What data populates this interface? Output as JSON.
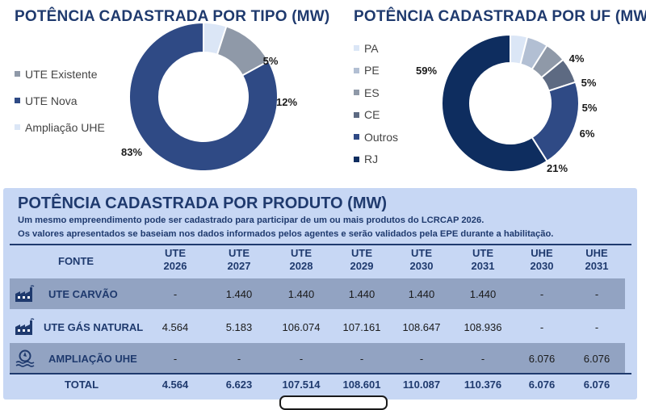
{
  "charts": {
    "by_type": {
      "title": "POTÊNCIA CADASTRADA POR TIPO (MW)"
    },
    "by_uf": {
      "title": "POTÊNCIA CADASTRADA POR UF (MW)"
    }
  },
  "chart_data": [
    {
      "type": "pie",
      "variant": "donut",
      "title": "POTÊNCIA CADASTRADA POR TIPO (MW)",
      "categories": [
        "UTE Existente",
        "UTE Nova",
        "Ampliação UHE"
      ],
      "values": [
        12,
        83,
        5
      ],
      "labels": [
        "12%",
        "83%",
        "5%"
      ],
      "colors": [
        "#8f99a8",
        "#2f4a85",
        "#dbe6f6"
      ],
      "legend": "left"
    },
    {
      "type": "pie",
      "variant": "donut",
      "title": "POTÊNCIA CADASTRADA POR UF (MW)",
      "categories": [
        "PA",
        "PE",
        "ES",
        "CE",
        "Outros",
        "RJ"
      ],
      "values": [
        4,
        5,
        5,
        6,
        21,
        59
      ],
      "labels": [
        "4%",
        "5%",
        "5%",
        "6%",
        "21%",
        "59%"
      ],
      "colors": [
        "#dbe6f6",
        "#b2bfd3",
        "#8f99a8",
        "#5d6a82",
        "#2f4a85",
        "#0e2d5f"
      ],
      "legend": "left"
    },
    {
      "type": "table",
      "title": "POTÊNCIA CADASTRADA POR PRODUTO (MW)",
      "columns": [
        "FONTE",
        "UTE 2026",
        "UTE 2027",
        "UTE 2028",
        "UTE 2029",
        "UTE 2030",
        "UTE 2031",
        "UHE 2030",
        "UHE 2031"
      ],
      "rows": [
        [
          "UTE CARVÃO",
          "-",
          "1.440",
          "1.440",
          "1.440",
          "1.440",
          "1.440",
          "-",
          "-"
        ],
        [
          "UTE GÁS NATURAL",
          "4.564",
          "5.183",
          "106.074",
          "107.161",
          "108.647",
          "108.936",
          "-",
          "-"
        ],
        [
          "AMPLIAÇÃO UHE",
          "-",
          "-",
          "-",
          "-",
          "-",
          "-",
          "6.076",
          "6.076"
        ],
        [
          "TOTAL",
          "4.564",
          "6.623",
          "107.514",
          "108.601",
          "110.087",
          "110.376",
          "6.076",
          "6.076"
        ]
      ]
    }
  ],
  "table": {
    "title": "POTÊNCIA CADASTRADA POR PRODUTO (MW)",
    "note1": "Um mesmo empreendimento pode ser cadastrado para participar de um ou mais produtos do LCRCAP 2026.",
    "note2": "Os valores apresentados se baseiam nos dados informados pelos agentes e serão validados pela EPE durante a habilitação.",
    "fonte_header": "FONTE",
    "headers": [
      {
        "a": "UTE",
        "b": "2026"
      },
      {
        "a": "UTE",
        "b": "2027"
      },
      {
        "a": "UTE",
        "b": "2028"
      },
      {
        "a": "UTE",
        "b": "2029"
      },
      {
        "a": "UTE",
        "b": "2030"
      },
      {
        "a": "UTE",
        "b": "2031"
      },
      {
        "a": "UHE",
        "b": "2030"
      },
      {
        "a": "UHE",
        "b": "2031"
      }
    ],
    "rows": [
      {
        "label": "UTE CARVÃO",
        "icon": "factory-icon",
        "values": [
          "-",
          "1.440",
          "1.440",
          "1.440",
          "1.440",
          "1.440",
          "-",
          "-"
        ]
      },
      {
        "label": "UTE GÁS NATURAL",
        "icon": "factory-icon",
        "values": [
          "4.564",
          "5.183",
          "106.074",
          "107.161",
          "108.647",
          "108.936",
          "-",
          "-"
        ]
      },
      {
        "label": "AMPLIAÇÃO UHE",
        "icon": "hydro-turbine-icon",
        "values": [
          "-",
          "-",
          "-",
          "-",
          "-",
          "-",
          "6.076",
          "6.076"
        ]
      }
    ],
    "total": {
      "label": "TOTAL",
      "values": [
        "4.564",
        "6.623",
        "107.514",
        "108.601",
        "110.087",
        "110.376",
        "6.076",
        "6.076"
      ]
    }
  }
}
